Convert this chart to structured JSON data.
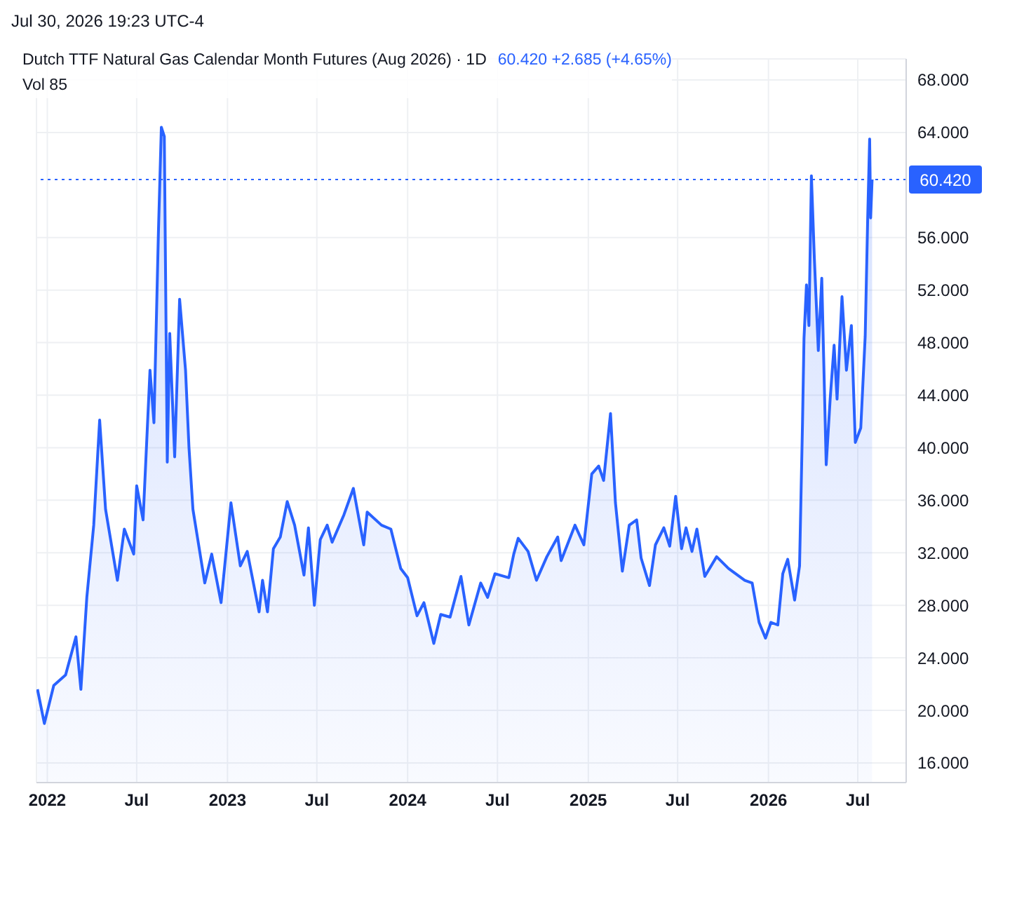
{
  "chart_data": {
    "type": "area",
    "title": "Dutch TTF Natural Gas Calendar Month Futures (Aug 2026) · 1D",
    "subtitle": "60.420 +2.685 (+4.65%)",
    "annotations": [
      "Jul 30, 2026 19:23 UTC-4",
      "Vol 85"
    ],
    "x": [
      "2021-12-12",
      "2021-12-26",
      "2022-01-14",
      "2022-02-07",
      "2022-02-28",
      "2022-03-10",
      "2022-03-22",
      "2022-04-05",
      "2022-04-17",
      "2022-04-29",
      "2022-05-23",
      "2022-06-06",
      "2022-06-25",
      "2022-07-01",
      "2022-07-14",
      "2022-07-28",
      "2022-08-05",
      "2022-08-14",
      "2022-08-20",
      "2022-08-26",
      "2022-09-01",
      "2022-09-06",
      "2022-09-16",
      "2022-09-26",
      "2022-10-08",
      "2022-10-15",
      "2022-10-23",
      "2022-11-16",
      "2022-11-30",
      "2022-12-19",
      "2023-01-08",
      "2023-01-27",
      "2023-02-10",
      "2023-03-06",
      "2023-03-13",
      "2023-03-23",
      "2023-04-04",
      "2023-04-18",
      "2023-05-02",
      "2023-05-17",
      "2023-06-05",
      "2023-06-14",
      "2023-06-26",
      "2023-07-08",
      "2023-07-22",
      "2023-08-01",
      "2023-08-25",
      "2023-09-13",
      "2023-10-04",
      "2023-10-11",
      "2023-11-09",
      "2023-11-28",
      "2023-12-18",
      "2024-01-01",
      "2024-01-20",
      "2024-02-03",
      "2024-02-23",
      "2024-03-08",
      "2024-03-27",
      "2024-04-18",
      "2024-05-04",
      "2024-05-28",
      "2024-06-11",
      "2024-06-26",
      "2024-07-24",
      "2024-08-03",
      "2024-08-12",
      "2024-09-01",
      "2024-09-18",
      "2024-10-09",
      "2024-10-31",
      "2024-11-07",
      "2024-12-05",
      "2024-12-23",
      "2025-01-08",
      "2025-01-22",
      "2025-02-01",
      "2025-02-15",
      "2025-02-25",
      "2025-03-11",
      "2025-03-25",
      "2025-04-09",
      "2025-04-18",
      "2025-05-05",
      "2025-05-17",
      "2025-06-03",
      "2025-06-15",
      "2025-06-27",
      "2025-07-09",
      "2025-07-18",
      "2025-07-30",
      "2025-08-09",
      "2025-08-25",
      "2025-09-18",
      "2025-10-12",
      "2025-11-14",
      "2025-11-29",
      "2025-12-13",
      "2025-12-26",
      "2026-01-06",
      "2026-01-20",
      "2026-01-30",
      "2026-02-09",
      "2026-02-23",
      "2026-03-05",
      "2026-03-11",
      "2026-03-14",
      "2026-03-19",
      "2026-03-24",
      "2026-03-29",
      "2026-04-04",
      "2026-04-12",
      "2026-04-19",
      "2026-04-28",
      "2026-05-06",
      "2026-05-14",
      "2026-05-20",
      "2026-05-30",
      "2026-06-08",
      "2026-06-18",
      "2026-06-26",
      "2026-07-07",
      "2026-07-16",
      "2026-07-21",
      "2026-07-25",
      "2026-07-27",
      "2026-07-30"
    ],
    "series": [
      {
        "color": "#2962ff",
        "values": [
          21.6,
          19.0,
          21.9,
          22.7,
          25.6,
          21.6,
          28.6,
          34.1,
          42.1,
          35.3,
          29.9,
          33.8,
          31.9,
          37.1,
          34.5,
          45.9,
          41.9,
          56.3,
          64.4,
          63.7,
          38.9,
          48.7,
          39.3,
          51.3,
          45.9,
          40.0,
          35.3,
          29.7,
          31.9,
          28.2,
          35.8,
          31.0,
          32.1,
          27.5,
          29.9,
          27.5,
          32.3,
          33.2,
          35.9,
          34.1,
          30.3,
          33.9,
          28.0,
          33.0,
          34.1,
          32.8,
          34.9,
          36.9,
          32.6,
          35.1,
          34.1,
          33.8,
          30.8,
          30.1,
          27.2,
          28.2,
          25.1,
          27.3,
          27.1,
          30.2,
          26.5,
          29.7,
          28.6,
          30.4,
          30.1,
          31.9,
          33.1,
          32.1,
          29.9,
          31.7,
          33.2,
          31.4,
          34.1,
          32.6,
          38.0,
          38.6,
          37.5,
          42.6,
          35.8,
          30.6,
          34.1,
          34.5,
          31.6,
          29.5,
          32.6,
          33.9,
          32.5,
          36.3,
          32.3,
          33.9,
          32.1,
          33.8,
          30.2,
          31.7,
          30.8,
          29.9,
          29.7,
          26.7,
          25.5,
          26.7,
          26.5,
          30.4,
          31.5,
          28.4,
          31.0,
          41.9,
          48.3,
          52.4,
          49.3,
          60.7,
          54.4,
          47.4,
          52.9,
          38.7,
          43.7,
          47.8,
          43.7,
          51.5,
          45.9,
          49.3,
          40.4,
          41.5,
          48.5,
          57.4,
          63.5,
          57.5,
          60.42
        ]
      }
    ],
    "xlim": [
      "2021-12-10",
      "2026-10-07"
    ],
    "xticks": [
      {
        "value": "2022-01-01",
        "label": "2022"
      },
      {
        "value": "2022-07-01",
        "label": "Jul"
      },
      {
        "value": "2023-01-01",
        "label": "2023"
      },
      {
        "value": "2023-07-01",
        "label": "Jul"
      },
      {
        "value": "2024-01-01",
        "label": "2024"
      },
      {
        "value": "2024-07-01",
        "label": "Jul"
      },
      {
        "value": "2025-01-01",
        "label": "2025"
      },
      {
        "value": "2025-07-01",
        "label": "Jul"
      },
      {
        "value": "2026-01-01",
        "label": "2026"
      },
      {
        "value": "2026-07-01",
        "label": "Jul"
      }
    ],
    "ylim": [
      14.5,
      69.6
    ],
    "yticks": [
      {
        "value": 16,
        "label": "16.000"
      },
      {
        "value": 20,
        "label": "20.000"
      },
      {
        "value": 24,
        "label": "24.000"
      },
      {
        "value": 28,
        "label": "28.000"
      },
      {
        "value": 32,
        "label": "32.000"
      },
      {
        "value": 36,
        "label": "36.000"
      },
      {
        "value": 40,
        "label": "40.000"
      },
      {
        "value": 44,
        "label": "44.000"
      },
      {
        "value": 48,
        "label": "48.000"
      },
      {
        "value": 52,
        "label": "52.000"
      },
      {
        "value": 56,
        "label": "56.000"
      },
      {
        "value": 64,
        "label": "64.000"
      },
      {
        "value": 68,
        "label": "68.000"
      }
    ],
    "ref_lines": [
      {
        "axis": "y",
        "value": 60.42,
        "label": "60.420",
        "color": "#2962ff",
        "line_style": "dotted"
      }
    ],
    "grid": true,
    "legend": false,
    "marker": "none",
    "line_style": "solid"
  }
}
